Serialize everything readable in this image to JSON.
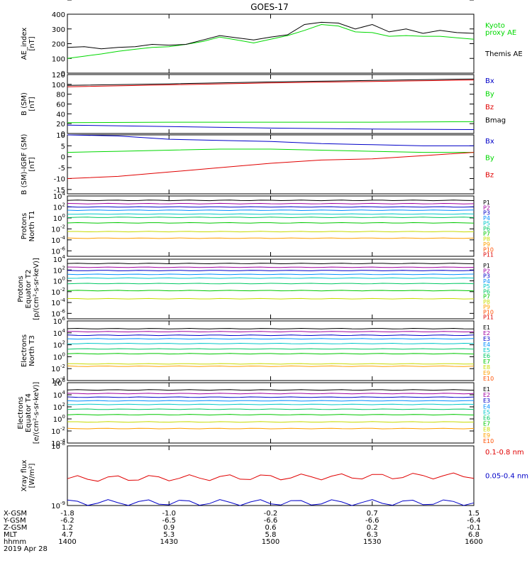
{
  "title": "GOES-17",
  "colors": {
    "black": "#000000",
    "green": "#00d800",
    "red": "#e00000",
    "blue": "#0000c8",
    "channels": [
      "#000000",
      "#a000a0",
      "#0000c8",
      "#0090ff",
      "#00c8c8",
      "#00c864",
      "#00c800",
      "#c8dc00",
      "#ffa000",
      "#ff5000",
      "#dc0000"
    ]
  },
  "time_axis": {
    "ticks": [
      "1400",
      "1430",
      "1500",
      "1530",
      "1600"
    ],
    "minor_per_major": 6,
    "date": "2019 Apr 28",
    "row_labels": [
      "X-GSM",
      "Y-GSM",
      "Z-GSM",
      "MLT",
      "hhmm"
    ],
    "rows": [
      [
        "-1.8",
        "-1.0",
        "-0.2",
        "0.7",
        "1.5"
      ],
      [
        "-6.2",
        "-6.5",
        "-6.6",
        "-6.6",
        "-6.4"
      ],
      [
        "1.2",
        "0.9",
        "0.6",
        "0.2",
        "-0.1"
      ],
      [
        "4.7",
        "5.3",
        "5.8",
        "6.3",
        "6.8"
      ],
      [
        "1400",
        "1430",
        "1500",
        "1530",
        "1600"
      ]
    ]
  },
  "panels": [
    {
      "ylabel": [
        "AE_index",
        "[nT]"
      ],
      "ticks": [
        "0",
        "100",
        "200",
        "300",
        "400"
      ],
      "legend": [
        "Kyoto",
        "proxy AE",
        "Themis AE"
      ]
    },
    {
      "ylabel": [
        "B (SM)",
        "[nT]"
      ],
      "ticks": [
        "0",
        "20",
        "40",
        "60",
        "80",
        "100",
        "120"
      ],
      "legend": [
        "Bx",
        "By",
        "Bz",
        "Bmag"
      ]
    },
    {
      "ylabel": [
        "B (SM)-IGRF (SM)",
        "[nT]"
      ],
      "ticks": [
        "-15",
        "-10",
        "-5",
        "0",
        "5",
        "10"
      ],
      "legend": [
        "Bx",
        "By",
        "Bz"
      ]
    },
    {
      "ylabel": [
        "Protons",
        "North T1"
      ],
      "ticks": [
        "10",
        "10",
        "10",
        "10",
        "10",
        "10"
      ],
      "exps": [
        "-6",
        "-4",
        "-2",
        "0",
        "2",
        "4"
      ],
      "legend": [
        "P1",
        "P2",
        "P3",
        "P4",
        "P5",
        "P6",
        "P7",
        "P8",
        "P9",
        "P10",
        "P11"
      ]
    },
    {
      "ylabel": [
        "Protons",
        "Equator T2",
        "[p/(cm²-s-sr-keV)]"
      ],
      "ticks": [
        "10",
        "10",
        "10",
        "10",
        "10",
        "10"
      ],
      "exps": [
        "-6",
        "-4",
        "-2",
        "0",
        "2",
        "4"
      ],
      "legend": [
        "P1",
        "P2",
        "P3",
        "P4",
        "P5",
        "P6",
        "P7",
        "P8",
        "P9",
        "P10",
        "P11"
      ]
    },
    {
      "ylabel": [
        "Electrons",
        "North T3"
      ],
      "ticks": [
        "10",
        "10",
        "10",
        "10",
        "10",
        "10",
        "10"
      ],
      "exps": [
        "-4",
        "-2",
        "0",
        "2",
        "4",
        "6"
      ],
      "legend": [
        "E1",
        "E2",
        "E3",
        "E4",
        "E5",
        "E6",
        "E7",
        "E8",
        "E9",
        "E10"
      ]
    },
    {
      "ylabel": [
        "Electrons",
        "Equator T4",
        "[e/(cm²-s-sr-keV)]"
      ],
      "ticks": [
        "10",
        "10",
        "10",
        "10",
        "10",
        "10"
      ],
      "exps": [
        "-4",
        "-2",
        "0",
        "2",
        "4",
        "6"
      ],
      "legend": [
        "E1",
        "E2",
        "E3",
        "E4",
        "E5",
        "E6",
        "E7",
        "E8",
        "E9",
        "E10"
      ]
    },
    {
      "ylabel": [
        "Xray flux",
        "[W/m²]"
      ],
      "ticks": [
        "10",
        "10"
      ],
      "exps": [
        "-9",
        "-8"
      ],
      "legend": [
        "0.1-0.8 nm",
        "0.05-0.4 nm"
      ]
    }
  ],
  "chart_data": [
    {
      "type": "line",
      "title": "GOES-17",
      "ylabel": "AE_index [nT]",
      "ylim": [
        0,
        400
      ],
      "x": [
        1400,
        1405,
        1410,
        1415,
        1420,
        1425,
        1430,
        1435,
        1440,
        1445,
        1450,
        1455,
        1500,
        1505,
        1510,
        1515,
        1520,
        1525,
        1530,
        1535,
        1540,
        1545,
        1550,
        1555,
        1600
      ],
      "series": [
        {
          "name": "Kyoto proxy AE",
          "values": [
            100,
            115,
            130,
            148,
            162,
            175,
            180,
            195,
            215,
            245,
            225,
            205,
            230,
            255,
            290,
            330,
            320,
            280,
            275,
            250,
            255,
            250,
            250,
            240,
            230
          ]
        },
        {
          "name": "Themis AE",
          "values": [
            175,
            180,
            165,
            175,
            180,
            195,
            190,
            195,
            225,
            255,
            240,
            225,
            245,
            260,
            330,
            345,
            340,
            300,
            330,
            280,
            300,
            270,
            290,
            275,
            270
          ]
        }
      ]
    },
    {
      "type": "line",
      "ylabel": "B (SM) [nT]",
      "ylim": [
        0,
        120
      ],
      "x": [
        1400,
        1430,
        1500,
        1530,
        1600
      ],
      "series": [
        {
          "name": "Bx",
          "values": [
            17,
            14,
            11,
            9,
            8
          ]
        },
        {
          "name": "By",
          "values": [
            22,
            23,
            23,
            23,
            24
          ]
        },
        {
          "name": "Bz",
          "values": [
            95,
            99,
            103,
            106,
            109
          ]
        },
        {
          "name": "Bmag",
          "values": [
            98,
            101,
            105,
            108,
            111
          ]
        }
      ]
    },
    {
      "type": "line",
      "ylabel": "B (SM)-IGRF (SM) [nT]",
      "ylim": [
        -17,
        10
      ],
      "x": [
        1400,
        1415,
        1430,
        1445,
        1500,
        1515,
        1530,
        1545,
        1600
      ],
      "series": [
        {
          "name": "Bx",
          "values": [
            10,
            9.5,
            8,
            7.5,
            7,
            6,
            5.5,
            5,
            5
          ]
        },
        {
          "name": "By",
          "values": [
            2,
            2.5,
            3,
            3.5,
            3.5,
            3,
            2.5,
            2,
            2
          ]
        },
        {
          "name": "Bz",
          "values": [
            -10,
            -9,
            -7,
            -5,
            -3,
            -1.5,
            -1,
            0.5,
            2
          ]
        }
      ]
    },
    {
      "type": "line",
      "ylabel": "Protons North T1 (log10)",
      "ylim": [
        -7,
        4
      ],
      "x": [
        1400,
        1600
      ],
      "series": [
        {
          "name": "P1",
          "values": [
            3.2,
            3.2
          ]
        },
        {
          "name": "P2",
          "values": [
            2.6,
            2.6
          ]
        },
        {
          "name": "P3",
          "values": [
            2.0,
            2.0
          ]
        },
        {
          "name": "P4",
          "values": [
            1.4,
            1.4
          ]
        },
        {
          "name": "P5",
          "values": [
            0.7,
            0.7
          ]
        },
        {
          "name": "P6",
          "values": [
            0.1,
            0.1
          ]
        },
        {
          "name": "P7",
          "values": [
            -0.9,
            -0.9
          ]
        },
        {
          "name": "P8",
          "values": [
            -2.5,
            -2.5
          ]
        },
        {
          "name": "P9",
          "values": [
            -3.7,
            -3.7
          ]
        }
      ]
    },
    {
      "type": "line",
      "ylabel": "Protons Equator T2 [p/(cm²-s-sr-keV)] (log10)",
      "ylim": [
        -7,
        4
      ],
      "x": [
        1400,
        1600
      ],
      "series": [
        {
          "name": "P1",
          "values": [
            3.2,
            3.2
          ]
        },
        {
          "name": "P2",
          "values": [
            2.5,
            2.5
          ]
        },
        {
          "name": "P3",
          "values": [
            1.9,
            1.9
          ]
        },
        {
          "name": "P4",
          "values": [
            1.2,
            1.2
          ]
        },
        {
          "name": "P5",
          "values": [
            0.5,
            0.5
          ]
        },
        {
          "name": "P6",
          "values": [
            -0.5,
            -0.5
          ]
        },
        {
          "name": "P7",
          "values": [
            -1.8,
            -1.8
          ]
        },
        {
          "name": "P8",
          "values": [
            -3.3,
            -3.3
          ]
        }
      ]
    },
    {
      "type": "line",
      "ylabel": "Electrons North T3 (log10)",
      "ylim": [
        -4,
        6
      ],
      "x": [
        1400,
        1600
      ],
      "series": [
        {
          "name": "E1",
          "values": [
            4.7,
            4.7
          ]
        },
        {
          "name": "E2",
          "values": [
            4.2,
            4.2
          ]
        },
        {
          "name": "E3",
          "values": [
            3.6,
            3.6
          ]
        },
        {
          "name": "E4",
          "values": [
            3.0,
            3.0
          ]
        },
        {
          "name": "E5",
          "values": [
            2.2,
            2.2
          ]
        },
        {
          "name": "E6",
          "values": [
            1.3,
            1.3
          ]
        },
        {
          "name": "E7",
          "values": [
            0.5,
            0.5
          ]
        },
        {
          "name": "E8",
          "values": [
            -1.2,
            -1.2
          ]
        },
        {
          "name": "E9",
          "values": [
            -1.6,
            -1.6
          ]
        }
      ]
    },
    {
      "type": "line",
      "ylabel": "Electrons Equator T4 [e/(cm²-s-sr-keV)] (log10)",
      "ylim": [
        -4,
        6
      ],
      "x": [
        1400,
        1600
      ],
      "series": [
        {
          "name": "E1",
          "values": [
            4.8,
            4.8
          ]
        },
        {
          "name": "E2",
          "values": [
            4.2,
            4.2
          ]
        },
        {
          "name": "E3",
          "values": [
            3.6,
            3.6
          ]
        },
        {
          "name": "E4",
          "values": [
            3.0,
            3.0
          ]
        },
        {
          "name": "E5",
          "values": [
            2.4,
            2.4
          ]
        },
        {
          "name": "E6",
          "values": [
            1.6,
            1.6
          ]
        },
        {
          "name": "E7",
          "values": [
            0.7,
            0.7
          ]
        },
        {
          "name": "E8",
          "values": [
            -0.5,
            -0.5
          ]
        },
        {
          "name": "E9",
          "values": [
            -1.6,
            -1.6
          ]
        }
      ]
    },
    {
      "type": "line",
      "ylabel": "Xray flux [W/m²] (log10)",
      "ylim": [
        -9,
        -8
      ],
      "x": [
        1400,
        1600
      ],
      "series": [
        {
          "name": "0.1-0.8 nm",
          "values": [
            -8.55,
            -8.5
          ]
        },
        {
          "name": "0.05-0.4 nm",
          "values": [
            -8.95,
            -8.95
          ]
        }
      ]
    }
  ]
}
